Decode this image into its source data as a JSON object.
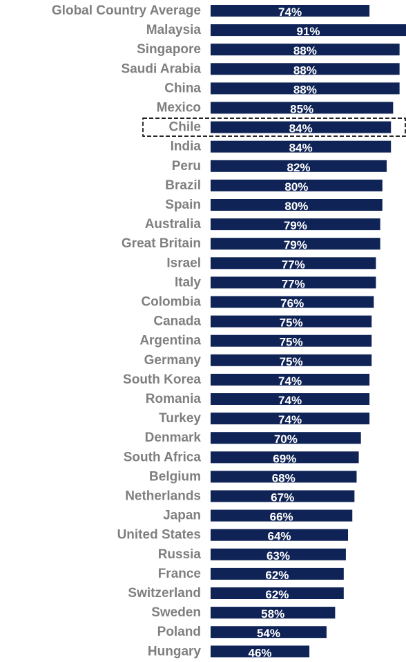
{
  "chart_data": {
    "type": "bar",
    "orientation": "horizontal",
    "categories": [
      "Global Country Average",
      "Malaysia",
      "Singapore",
      "Saudi Arabia",
      "China",
      "Mexico",
      "Chile",
      "India",
      "Peru",
      "Brazil",
      "Spain",
      "Australia",
      "Great Britain",
      "Israel",
      "Italy",
      "Colombia",
      "Canada",
      "Argentina",
      "Germany",
      "South Korea",
      "Romania",
      "Turkey",
      "Denmark",
      "South Africa",
      "Belgium",
      "Netherlands",
      "Japan",
      "United States",
      "Russia",
      "France",
      "Switzerland",
      "Sweden",
      "Poland",
      "Hungary"
    ],
    "values": [
      74,
      91,
      88,
      88,
      88,
      85,
      84,
      84,
      82,
      80,
      80,
      79,
      79,
      77,
      77,
      76,
      75,
      75,
      75,
      74,
      74,
      74,
      70,
      69,
      68,
      67,
      66,
      64,
      63,
      62,
      62,
      58,
      54,
      46
    ],
    "value_labels": [
      "74%",
      "91%",
      "88%",
      "88%",
      "88%",
      "85%",
      "84%",
      "84%",
      "82%",
      "80%",
      "80%",
      "79%",
      "79%",
      "77%",
      "77%",
      "76%",
      "75%",
      "75%",
      "75%",
      "74%",
      "74%",
      "74%",
      "70%",
      "69%",
      "68%",
      "67%",
      "66%",
      "64%",
      "63%",
      "62%",
      "62%",
      "58%",
      "54%",
      "46%"
    ],
    "highlighted_category": "Chile",
    "bar_color": "#0f2356",
    "label_color": "#7f7f7f",
    "value_label_color": "#ffffff",
    "xlim": [
      0,
      100
    ],
    "grid": false,
    "legend": "none"
  }
}
